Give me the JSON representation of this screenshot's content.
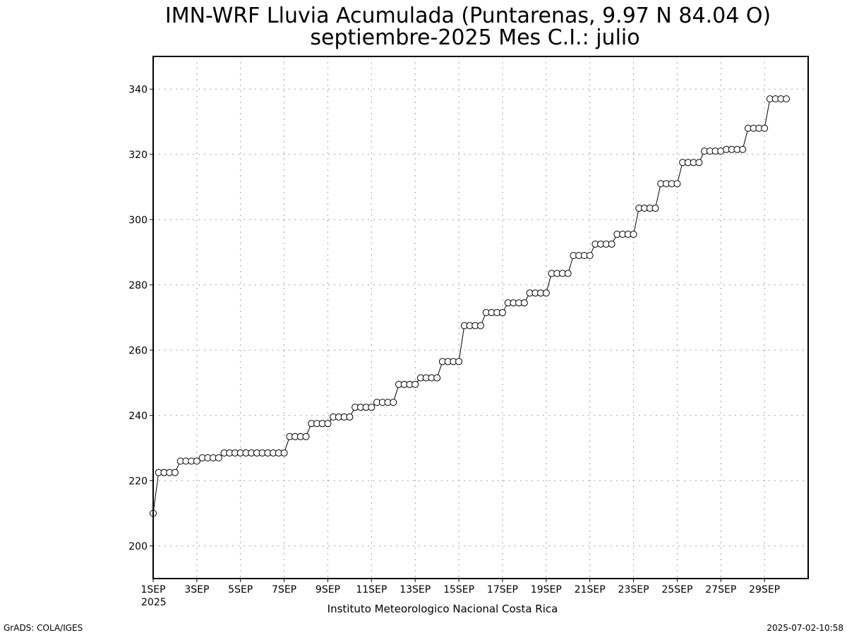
{
  "chart_data": {
    "type": "line",
    "title": "IMN-WRF  Lluvia Acumulada (Puntarenas, 9.97  N 84.04  O)",
    "subtitle": "septiembre-2025 Mes C.I.: julio",
    "xlabel": "",
    "ylabel": "",
    "ylim": [
      190,
      350
    ],
    "xlim": [
      1,
      31
    ],
    "y_ticks": [
      200,
      220,
      240,
      260,
      280,
      300,
      320,
      340
    ],
    "x_ticks": [
      {
        "day": 1,
        "label": "1SEP"
      },
      {
        "day": 3,
        "label": "3SEP"
      },
      {
        "day": 5,
        "label": "5SEP"
      },
      {
        "day": 7,
        "label": "7SEP"
      },
      {
        "day": 9,
        "label": "9SEP"
      },
      {
        "day": 11,
        "label": "11SEP"
      },
      {
        "day": 13,
        "label": "13SEP"
      },
      {
        "day": 15,
        "label": "15SEP"
      },
      {
        "day": 17,
        "label": "17SEP"
      },
      {
        "day": 19,
        "label": "19SEP"
      },
      {
        "day": 21,
        "label": "21SEP"
      },
      {
        "day": 23,
        "label": "23SEP"
      },
      {
        "day": 25,
        "label": "25SEP"
      },
      {
        "day": 27,
        "label": "27SEP"
      },
      {
        "day": 29,
        "label": "29SEP"
      }
    ],
    "year_label": "2025",
    "grid": true,
    "marker": "open-circle",
    "series": [
      {
        "x": [
          1.0,
          1.25,
          1.5,
          1.75,
          2.0,
          2.25,
          2.5,
          2.75,
          3.0,
          3.25,
          3.5,
          3.75,
          4.0,
          4.25,
          4.5,
          4.75,
          5.0,
          5.25,
          5.5,
          5.75,
          6.0,
          6.25,
          6.5,
          6.75,
          7.0,
          7.25,
          7.5,
          7.75,
          8.0,
          8.25,
          8.5,
          8.75,
          9.0,
          9.25,
          9.5,
          9.75,
          10.0,
          10.25,
          10.5,
          10.75,
          11.0,
          11.25,
          11.5,
          11.75,
          12.0,
          12.25,
          12.5,
          12.75,
          13.0,
          13.25,
          13.5,
          13.75,
          14.0,
          14.25,
          14.5,
          14.75,
          15.0,
          15.25,
          15.5,
          15.75,
          16.0,
          16.25,
          16.5,
          16.75,
          17.0,
          17.25,
          17.5,
          17.75,
          18.0,
          18.25,
          18.5,
          18.75,
          19.0,
          19.25,
          19.5,
          19.75,
          20.0,
          20.25,
          20.5,
          20.75,
          21.0,
          21.25,
          21.5,
          21.75,
          22.0,
          22.25,
          22.5,
          22.75,
          23.0,
          23.25,
          23.5,
          23.75,
          24.0,
          24.25,
          24.5,
          24.75,
          25.0,
          25.25,
          25.5,
          25.75,
          26.0,
          26.25,
          26.5,
          26.75,
          27.0,
          27.25,
          27.5,
          27.75,
          28.0,
          28.25,
          28.5,
          28.75,
          29.0,
          29.25,
          29.5,
          29.75,
          30.0
        ],
        "values": [
          210.0,
          222.5,
          222.5,
          222.5,
          222.5,
          226.0,
          226.0,
          226.0,
          226.0,
          227.0,
          227.0,
          227.0,
          227.0,
          228.5,
          228.5,
          228.5,
          228.5,
          228.5,
          228.5,
          228.5,
          228.5,
          228.5,
          228.5,
          228.5,
          228.5,
          233.5,
          233.5,
          233.5,
          233.5,
          237.5,
          237.5,
          237.5,
          237.5,
          239.5,
          239.5,
          239.5,
          239.5,
          242.5,
          242.5,
          242.5,
          242.5,
          244.0,
          244.0,
          244.0,
          244.0,
          249.5,
          249.5,
          249.5,
          249.5,
          251.5,
          251.5,
          251.5,
          251.5,
          256.5,
          256.5,
          256.5,
          256.5,
          267.5,
          267.5,
          267.5,
          267.5,
          271.5,
          271.5,
          271.5,
          271.5,
          274.5,
          274.5,
          274.5,
          274.5,
          277.5,
          277.5,
          277.5,
          277.5,
          283.5,
          283.5,
          283.5,
          283.5,
          289.0,
          289.0,
          289.0,
          289.0,
          292.5,
          292.5,
          292.5,
          292.5,
          295.5,
          295.5,
          295.5,
          295.5,
          303.5,
          303.5,
          303.5,
          303.5,
          311.0,
          311.0,
          311.0,
          311.0,
          317.5,
          317.5,
          317.5,
          317.5,
          321.0,
          321.0,
          321.0,
          321.0,
          321.5,
          321.5,
          321.5,
          321.5,
          328.0,
          328.0,
          328.0,
          328.0,
          337.0,
          337.0,
          337.0,
          337.0
        ]
      }
    ],
    "colors": {
      "line": "#000000",
      "grid": "#a0a0a0",
      "frame": "#000000",
      "marker_fill": "#ffffff"
    }
  },
  "footer": {
    "institution": "Instituto Meteorologico Nacional Costa Rica",
    "software": "GrADS: COLA/IGES",
    "timestamp": "2025-07-02-10:58"
  }
}
